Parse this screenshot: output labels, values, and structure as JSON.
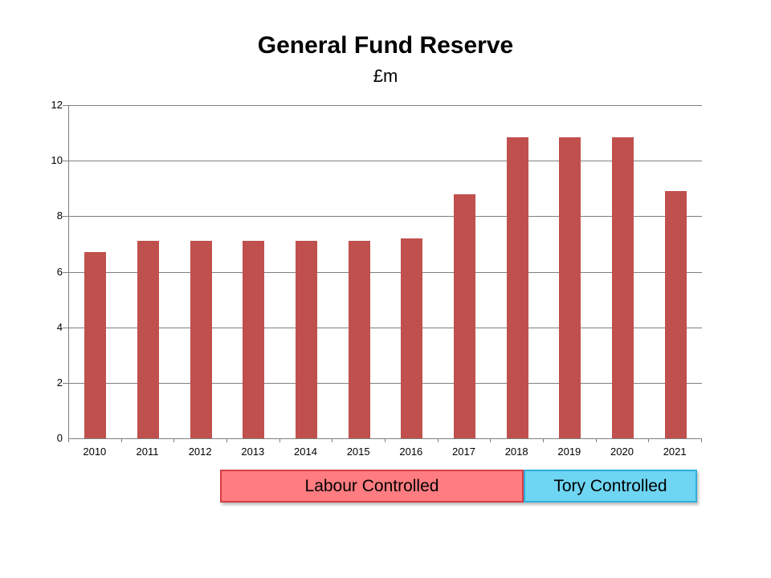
{
  "header": {
    "title": "General Fund Reserve",
    "subtitle": "£m"
  },
  "chart_data": {
    "type": "bar",
    "title": "General Fund Reserve",
    "subtitle_units": "£m",
    "categories": [
      "2010",
      "2011",
      "2012",
      "2013",
      "2014",
      "2015",
      "2016",
      "2017",
      "2018",
      "2019",
      "2020",
      "2021"
    ],
    "values": [
      6.7,
      7.1,
      7.1,
      7.1,
      7.1,
      7.1,
      7.2,
      8.8,
      10.85,
      10.85,
      10.85,
      8.9
    ],
    "ylim": [
      0,
      12
    ],
    "yticks": [
      0,
      2,
      4,
      6,
      8,
      10,
      12
    ],
    "grid": true,
    "legend_position": "bottom",
    "bar_color": "#c0504d",
    "gridline_color": "#7f7f7f",
    "axis_color": "#7f7f7f",
    "text_color": "#000000",
    "annotations": [
      {
        "label": "Labour Controlled",
        "fill": "#ff7c80",
        "border": "#d43f46",
        "start_category": "2010",
        "end_category": "2017"
      },
      {
        "label": "Tory Controlled",
        "fill": "#6ed5f3",
        "border": "#30aeda",
        "start_category": "2018",
        "end_category": "2021"
      }
    ]
  }
}
